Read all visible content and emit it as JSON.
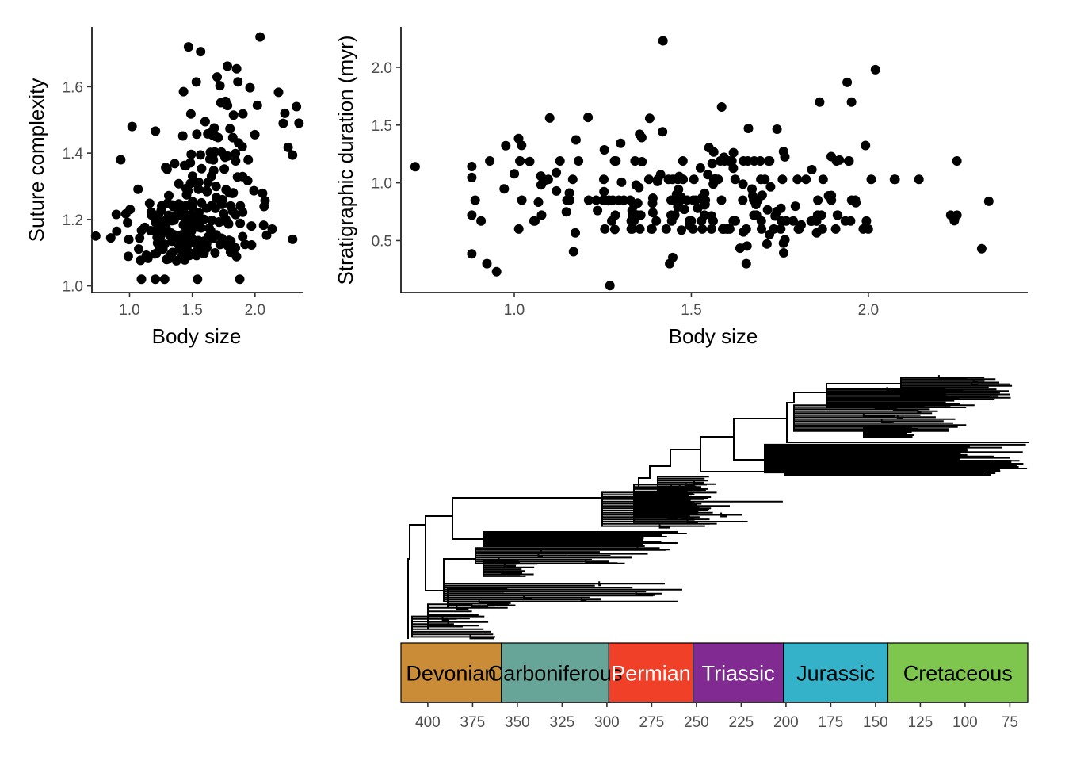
{
  "chart_data": [
    {
      "type": "scatter",
      "xlabel": "Body size",
      "ylabel": "Suture complexity",
      "xlim": [
        0.7,
        2.38
      ],
      "ylim": [
        0.98,
        1.78
      ],
      "xticks": [
        1.0,
        1.5,
        2.0
      ],
      "xtick_labels": [
        "1.0",
        "1.5",
        "2.0"
      ],
      "yticks": [
        1.0,
        1.2,
        1.4,
        1.6
      ],
      "ytick_labels": [
        "1.0",
        "1.2",
        "1.4",
        "1.6"
      ],
      "grid": false,
      "point_color": "#000000",
      "n_points": 260,
      "notable_points": [
        {
          "x": 0.73,
          "y": 1.15
        },
        {
          "x": 0.93,
          "y": 1.38
        },
        {
          "x": 1.02,
          "y": 1.48
        },
        {
          "x": 1.28,
          "y": 1.02
        },
        {
          "x": 1.47,
          "y": 1.72
        },
        {
          "x": 2.04,
          "y": 1.75
        },
        {
          "x": 2.35,
          "y": 1.49
        },
        {
          "x": 2.33,
          "y": 1.54
        }
      ]
    },
    {
      "type": "scatter",
      "xlabel": "Body size",
      "ylabel": "Stratigraphic duration (myr)",
      "xlim": [
        0.68,
        2.45
      ],
      "ylim": [
        0.05,
        2.35
      ],
      "xticks": [
        1.0,
        1.5,
        2.0
      ],
      "xtick_labels": [
        "1.0",
        "1.5",
        "2.0"
      ],
      "yticks": [
        0.5,
        1.0,
        1.5,
        2.0
      ],
      "ytick_labels": [
        "0.5",
        "1.0",
        "1.5",
        "2.0"
      ],
      "grid": false,
      "point_color": "#000000",
      "n_points": 260,
      "notable_points": [
        {
          "x": 0.72,
          "y": 1.14
        },
        {
          "x": 0.95,
          "y": 0.23
        },
        {
          "x": 1.27,
          "y": 0.11
        },
        {
          "x": 1.42,
          "y": 2.23
        },
        {
          "x": 2.02,
          "y": 1.98
        },
        {
          "x": 1.94,
          "y": 1.87
        },
        {
          "x": 2.32,
          "y": 0.43
        },
        {
          "x": 2.34,
          "y": 0.84
        }
      ]
    },
    {
      "type": "phylogeny",
      "xlabel": "",
      "xreverse": true,
      "xlim": [
        415,
        65
      ],
      "xticks": [
        400,
        375,
        350,
        325,
        300,
        275,
        250,
        225,
        200,
        175,
        150,
        125,
        100,
        75
      ],
      "xtick_labels": [
        "400",
        "375",
        "350",
        "325",
        "300",
        "275",
        "250",
        "225",
        "200",
        "175",
        "150",
        "125",
        "100",
        "75"
      ],
      "branch_color": "#000000",
      "periods": [
        {
          "name": "Devonian",
          "start": 415,
          "end": 358.9,
          "color": "#CB8C37",
          "text_color": "#000000"
        },
        {
          "name": "Carboniferous",
          "start": 358.9,
          "end": 298.9,
          "color": "#67A599",
          "text_color": "#000000"
        },
        {
          "name": "Permian",
          "start": 298.9,
          "end": 251.9,
          "color": "#F04028",
          "text_color": "#FFFFFF"
        },
        {
          "name": "Triassic",
          "start": 251.9,
          "end": 201.4,
          "color": "#812B92",
          "text_color": "#FFFFFF"
        },
        {
          "name": "Jurassic",
          "start": 201.4,
          "end": 143.1,
          "color": "#34B2C9",
          "text_color": "#000000"
        },
        {
          "name": "Cretaceous",
          "start": 143.1,
          "end": 65,
          "color": "#7FC64E",
          "text_color": "#000000"
        }
      ]
    }
  ]
}
